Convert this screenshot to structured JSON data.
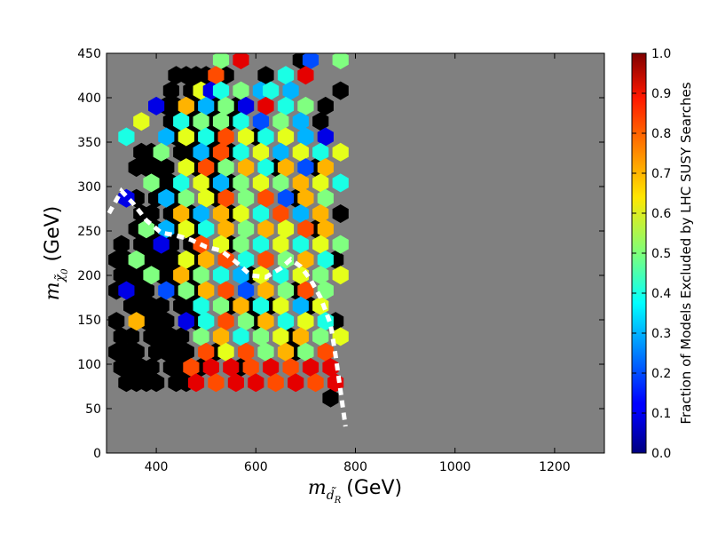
{
  "chart_data": {
    "type": "heatmap",
    "subtype": "hexbin",
    "xlabel": {
      "symbol": "m",
      "sub": "d̃",
      "subsub": "R",
      "unit": "(GeV)"
    },
    "ylabel": {
      "symbol": "m",
      "sub": "χ̃",
      "subsub": "0",
      "unit": "(GeV)"
    },
    "xlim": [
      300,
      1300
    ],
    "ylim": [
      0,
      450
    ],
    "xticks": [
      400,
      600,
      800,
      1000,
      1200
    ],
    "yticks": [
      0,
      50,
      100,
      150,
      200,
      250,
      300,
      350,
      400,
      450
    ],
    "background_color": "#808080",
    "no_data_color": "#000000",
    "colorbar": {
      "label": "Fraction of Models Excluded by LHC SUSY Searches",
      "min": 0.0,
      "max": 1.0,
      "ticks": [
        "0.0",
        "0.1",
        "0.2",
        "0.3",
        "0.4",
        "0.5",
        "0.6",
        "0.7",
        "0.8",
        "0.9",
        "1.0"
      ],
      "colormap": "jet"
    },
    "hex_grid": {
      "x0": 300,
      "dx": 40,
      "y0": 10,
      "dy": 17.3
    },
    "cells": [
      [
        11,
        25,
        0.5
      ],
      [
        13,
        25,
        0.9
      ],
      [
        20,
        25,
        0.2
      ],
      [
        23,
        25,
        0.5
      ],
      [
        11,
        24,
        0.8
      ],
      [
        18,
        24,
        0.4
      ],
      [
        20,
        24,
        0.9
      ],
      [
        9,
        23,
        0.6
      ],
      [
        10,
        23,
        0.1
      ],
      [
        11,
        23,
        0.4
      ],
      [
        13,
        23,
        0.5
      ],
      [
        15,
        23,
        0.3
      ],
      [
        16,
        23,
        0.4
      ],
      [
        18,
        23,
        0.3
      ],
      [
        5,
        22,
        0.1
      ],
      [
        8,
        22,
        0.7
      ],
      [
        10,
        22,
        0.3
      ],
      [
        12,
        22,
        0.5
      ],
      [
        14,
        22,
        0.1
      ],
      [
        16,
        22,
        0.9
      ],
      [
        18,
        22,
        0.4
      ],
      [
        20,
        22,
        0.5
      ],
      [
        3,
        21,
        0.6
      ],
      [
        7,
        21,
        0.4
      ],
      [
        9,
        21,
        0.5
      ],
      [
        11,
        21,
        0.5
      ],
      [
        13,
        21,
        0.4
      ],
      [
        15,
        21,
        0.2
      ],
      [
        17,
        21,
        0.5
      ],
      [
        19,
        21,
        0.3
      ],
      [
        2,
        20,
        0.4
      ],
      [
        6,
        20,
        0.3
      ],
      [
        8,
        20,
        0.6
      ],
      [
        10,
        20,
        0.4
      ],
      [
        12,
        20,
        0.8
      ],
      [
        14,
        20,
        0.6
      ],
      [
        16,
        20,
        0.4
      ],
      [
        18,
        20,
        0.6
      ],
      [
        20,
        20,
        0.3
      ],
      [
        22,
        20,
        0.1
      ],
      [
        5,
        19,
        0.5
      ],
      [
        9,
        19,
        0.3
      ],
      [
        11,
        19,
        0.8
      ],
      [
        13,
        19,
        0.4
      ],
      [
        15,
        19,
        0.6
      ],
      [
        17,
        19,
        0.3
      ],
      [
        19,
        19,
        0.6
      ],
      [
        21,
        19,
        0.4
      ],
      [
        23,
        19,
        0.6
      ],
      [
        8,
        18,
        0.6
      ],
      [
        10,
        18,
        0.8
      ],
      [
        12,
        18,
        0.5
      ],
      [
        14,
        18,
        0.7
      ],
      [
        16,
        18,
        0.4
      ],
      [
        18,
        18,
        0.7
      ],
      [
        20,
        18,
        0.2
      ],
      [
        22,
        18,
        0.7
      ],
      [
        4,
        17,
        0.5
      ],
      [
        7,
        17,
        0.4
      ],
      [
        9,
        17,
        0.6
      ],
      [
        11,
        17,
        0.3
      ],
      [
        13,
        17,
        0.5
      ],
      [
        15,
        17,
        0.6
      ],
      [
        17,
        17,
        0.5
      ],
      [
        19,
        17,
        0.7
      ],
      [
        21,
        17,
        0.6
      ],
      [
        23,
        17,
        0.4
      ],
      [
        2,
        16,
        0.1
      ],
      [
        6,
        16,
        0.3
      ],
      [
        8,
        16,
        0.5
      ],
      [
        10,
        16,
        0.6
      ],
      [
        12,
        16,
        0.8
      ],
      [
        14,
        16,
        0.5
      ],
      [
        16,
        16,
        0.8
      ],
      [
        18,
        16,
        0.2
      ],
      [
        20,
        16,
        0.7
      ],
      [
        22,
        16,
        0.5
      ],
      [
        7,
        15,
        0.7
      ],
      [
        9,
        15,
        0.3
      ],
      [
        11,
        15,
        0.7
      ],
      [
        13,
        15,
        0.6
      ],
      [
        15,
        15,
        0.4
      ],
      [
        17,
        15,
        0.8
      ],
      [
        19,
        15,
        0.3
      ],
      [
        21,
        15,
        0.7
      ],
      [
        4,
        14,
        0.5
      ],
      [
        6,
        14,
        0.3
      ],
      [
        8,
        14,
        0.6
      ],
      [
        10,
        14,
        0.4
      ],
      [
        12,
        14,
        0.7
      ],
      [
        14,
        14,
        0.5
      ],
      [
        16,
        14,
        0.7
      ],
      [
        18,
        14,
        0.6
      ],
      [
        20,
        14,
        0.8
      ],
      [
        22,
        14,
        0.7
      ],
      [
        5,
        13,
        0.1
      ],
      [
        9,
        13,
        0.8
      ],
      [
        11,
        13,
        0.6
      ],
      [
        13,
        13,
        0.5
      ],
      [
        15,
        13,
        0.4
      ],
      [
        17,
        13,
        0.6
      ],
      [
        19,
        13,
        0.4
      ],
      [
        21,
        13,
        0.6
      ],
      [
        23,
        13,
        0.5
      ],
      [
        3,
        12,
        0.5
      ],
      [
        8,
        12,
        0.6
      ],
      [
        10,
        12,
        0.7
      ],
      [
        12,
        12,
        0.8
      ],
      [
        14,
        12,
        0.4
      ],
      [
        16,
        12,
        0.8
      ],
      [
        18,
        12,
        0.5
      ],
      [
        20,
        12,
        0.7
      ],
      [
        22,
        12,
        0.4
      ],
      [
        4,
        11,
        0.5
      ],
      [
        7,
        11,
        0.7
      ],
      [
        9,
        11,
        0.5
      ],
      [
        11,
        11,
        0.4
      ],
      [
        13,
        11,
        0.3
      ],
      [
        15,
        11,
        0.6
      ],
      [
        17,
        11,
        0.4
      ],
      [
        19,
        11,
        0.6
      ],
      [
        21,
        11,
        0.5
      ],
      [
        23,
        11,
        0.6
      ],
      [
        2,
        10,
        0.1
      ],
      [
        6,
        10,
        0.2
      ],
      [
        8,
        10,
        0.5
      ],
      [
        10,
        10,
        0.7
      ],
      [
        12,
        10,
        0.8
      ],
      [
        14,
        10,
        0.2
      ],
      [
        16,
        10,
        0.7
      ],
      [
        18,
        10,
        0.5
      ],
      [
        20,
        10,
        0.8
      ],
      [
        22,
        10,
        0.5
      ],
      [
        9,
        9,
        0.4
      ],
      [
        11,
        9,
        0.5
      ],
      [
        13,
        9,
        0.7
      ],
      [
        15,
        9,
        0.4
      ],
      [
        17,
        9,
        0.6
      ],
      [
        19,
        9,
        0.3
      ],
      [
        21,
        9,
        0.6
      ],
      [
        3,
        8,
        0.7
      ],
      [
        8,
        8,
        0.1
      ],
      [
        10,
        8,
        0.4
      ],
      [
        12,
        8,
        0.8
      ],
      [
        14,
        8,
        0.5
      ],
      [
        16,
        8,
        0.7
      ],
      [
        18,
        8,
        0.4
      ],
      [
        20,
        8,
        0.6
      ],
      [
        22,
        8,
        0.4
      ],
      [
        9,
        7,
        0.5
      ],
      [
        11,
        7,
        0.7
      ],
      [
        13,
        7,
        0.4
      ],
      [
        15,
        7,
        0.5
      ],
      [
        17,
        7,
        0.6
      ],
      [
        19,
        7,
        0.7
      ],
      [
        21,
        7,
        0.5
      ],
      [
        23,
        7,
        0.6
      ],
      [
        10,
        6,
        0.8
      ],
      [
        12,
        6,
        0.6
      ],
      [
        14,
        6,
        0.8
      ],
      [
        16,
        6,
        0.5
      ],
      [
        18,
        6,
        0.7
      ],
      [
        20,
        6,
        0.5
      ],
      [
        22,
        6,
        0.8
      ],
      [
        8,
        5,
        0.8
      ],
      [
        10,
        5,
        0.9
      ],
      [
        12,
        5,
        0.9
      ],
      [
        14,
        5,
        0.8
      ],
      [
        16,
        5,
        0.9
      ],
      [
        18,
        5,
        0.8
      ],
      [
        20,
        5,
        0.9
      ],
      [
        22,
        5,
        0.9
      ],
      [
        9,
        4,
        0.9
      ],
      [
        11,
        4,
        0.8
      ],
      [
        13,
        4,
        0.9
      ],
      [
        15,
        4,
        0.9
      ],
      [
        17,
        4,
        0.8
      ],
      [
        19,
        4,
        0.9
      ],
      [
        21,
        4,
        0.8
      ],
      [
        23,
        4,
        0.9
      ]
    ],
    "zero_regions": [
      {
        "i_range": [
          1,
          9
        ],
        "j_range": [
          4,
          13
        ]
      },
      {
        "i_range": [
          3,
          12
        ],
        "j_range": [
          14,
          19
        ]
      },
      {
        "i_range": [
          6,
          12
        ],
        "j_range": [
          20,
          24
        ]
      }
    ],
    "scattered_zero_cells": [
      [
        13,
        22
      ],
      [
        15,
        20
      ],
      [
        17,
        18
      ],
      [
        19,
        16
      ],
      [
        21,
        14
      ],
      [
        23,
        12
      ],
      [
        12,
        13
      ],
      [
        14,
        11
      ],
      [
        16,
        9
      ],
      [
        18,
        7
      ],
      [
        20,
        5
      ],
      [
        22,
        3
      ],
      [
        14,
        9
      ],
      [
        17,
        11
      ],
      [
        20,
        9
      ],
      [
        22,
        12
      ],
      [
        23,
        15
      ],
      [
        21,
        18
      ],
      [
        18,
        20
      ],
      [
        16,
        24
      ],
      [
        19,
        25
      ],
      [
        22,
        22
      ],
      [
        23,
        23
      ],
      [
        21,
        21
      ],
      [
        12,
        9
      ],
      [
        15,
        8
      ],
      [
        19,
        10
      ],
      [
        22,
        10
      ],
      [
        11,
        6
      ],
      [
        13,
        5
      ],
      [
        16,
        6
      ],
      [
        19,
        6
      ],
      [
        21,
        4
      ],
      [
        23,
        8
      ]
    ],
    "exclusion_curve": {
      "style": "dashed",
      "color": "#ffffff",
      "x": [
        305,
        330,
        355,
        380,
        410,
        440,
        470,
        500,
        530,
        560,
        590,
        620,
        650,
        670,
        690,
        710,
        730,
        750,
        760,
        770,
        780
      ],
      "y": [
        270,
        295,
        280,
        262,
        248,
        245,
        240,
        232,
        228,
        215,
        200,
        198,
        208,
        218,
        210,
        195,
        175,
        145,
        110,
        70,
        30
      ]
    }
  }
}
